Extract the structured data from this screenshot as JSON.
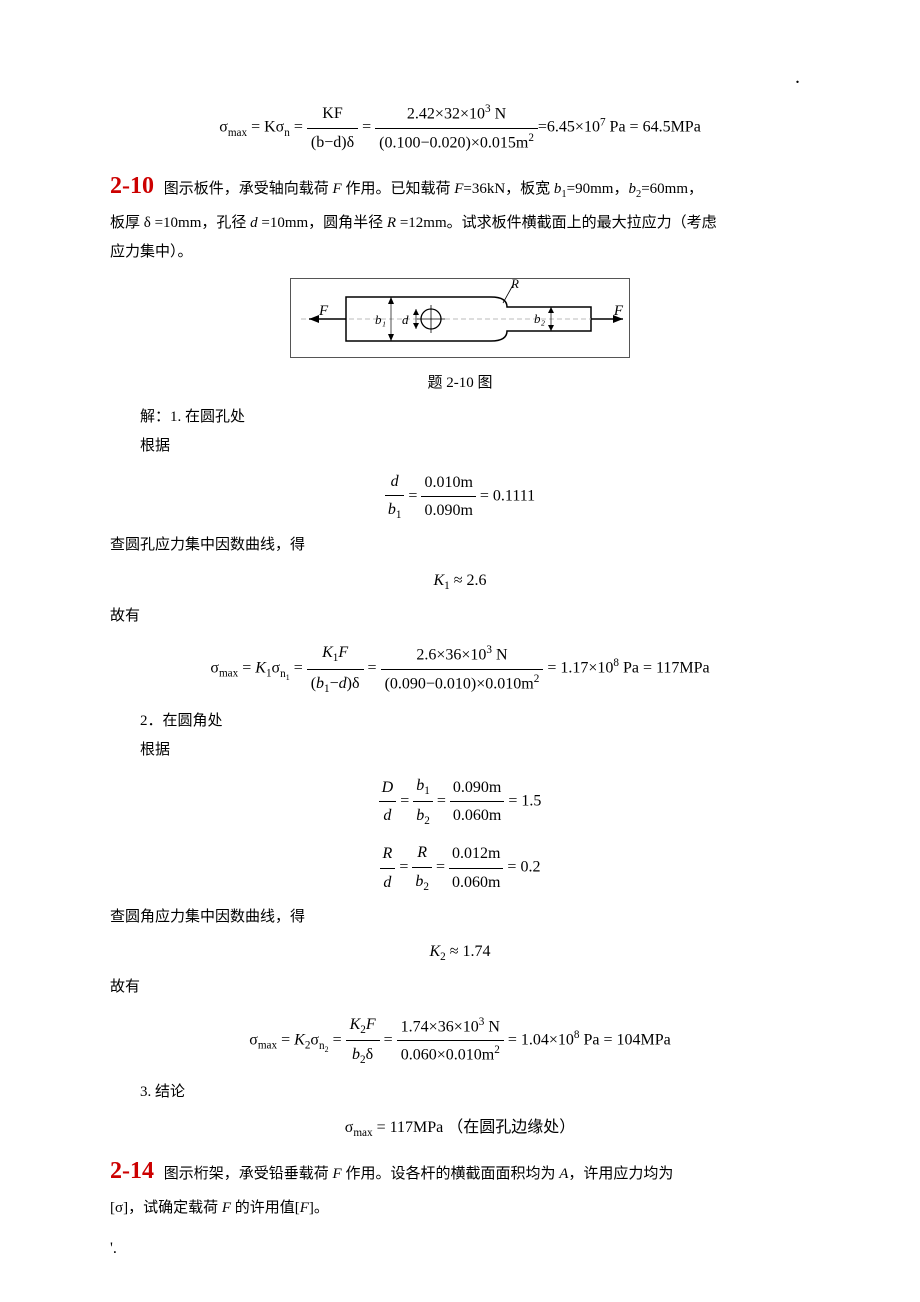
{
  "top_equation": "σ<sub>max</sub> = Kσ<sub>n</sub> = <span style='display:inline-block;vertical-align:middle'><span style='display:block;border-bottom:1px solid #000;padding:0 4px'>KF</span><span style='display:block;padding:0 4px'>(b−d)δ</span></span> = <span style='display:inline-block;vertical-align:middle'><span style='display:block;border-bottom:1px solid #000;padding:0 4px'>2.42×32×10<sup>3</sup> N</span><span style='display:block;padding:0 4px'>(0.100−0.020)×0.015m<sup>2</sup></span></span>=6.45×10<sup>7</sup> Pa = 64.5MPa",
  "p210": {
    "num": "2-10",
    "text1": "图示板件，承受轴向载荷 <span class='italic'>F</span> 作用。已知载荷 <span class='italic'>F</span>=36kN，板宽 <span class='italic'>b</span><sub>1</sub>=90mm，<span class='italic'>b</span><sub>2</sub>=60mm，",
    "text2": "板厚 δ =10mm，孔径 <span class='italic'>d</span> =10mm，圆角半径 <span class='italic'>R</span> =12mm。试求板件横截面上的最大拉应力（考虑",
    "text3": "应力集中）。",
    "figcap": "题 2-10 图",
    "sol1": "解：1. 在圆孔处",
    "sol2": "根据",
    "eq_db": "<span style='display:inline-block;vertical-align:middle'><span style='display:block;border-bottom:1px solid #000;text-align:center;padding:0 3px'><span class='italic'>d</span></span><span style='display:block;text-align:center;padding:0 3px'><span class='italic'>b</span><sub>1</sub></span></span> = <span style='display:inline-block;vertical-align:middle'><span style='display:block;border-bottom:1px solid #000;padding:0 3px'>0.010m</span><span style='display:block;padding:0 3px'>0.090m</span></span> = 0.1111",
    "curve1": "查圆孔应力集中因数曲线，得",
    "eq_k1": "<span class='italic'>K</span><sub>1</sub> ≈ 2.6",
    "hence1": "故有",
    "eq_sigma1": "σ<sub>max</sub> = <span class='italic'>K</span><sub>1</sub>σ<sub>n<sub>1</sub></sub> = <span style='display:inline-block;vertical-align:middle'><span style='display:block;border-bottom:1px solid #000;text-align:center;padding:0 4px'><span class='italic'>K</span><sub>1</sub><span class='italic'>F</span></span><span style='display:block;text-align:center;padding:0 4px'>(<span class='italic'>b</span><sub>1</sub>−<span class='italic'>d</span>)δ</span></span> = <span style='display:inline-block;vertical-align:middle'><span style='display:block;border-bottom:1px solid #000;padding:0 4px'>2.6×36×10<sup>3</sup> N</span><span style='display:block;padding:0 4px'>(0.090−0.010)×0.010m<sup>2</sup></span></span> = 1.17×10<sup>8</sup> Pa = 117MPa",
    "sol3": "2．在圆角处",
    "sol4": "根据",
    "eq_Dd": "<span style='display:inline-block;vertical-align:middle'><span style='display:block;border-bottom:1px solid #000;text-align:center;padding:0 3px'><span class='italic'>D</span></span><span style='display:block;text-align:center;padding:0 3px'><span class='italic'>d</span></span></span> = <span style='display:inline-block;vertical-align:middle'><span style='display:block;border-bottom:1px solid #000;text-align:center;padding:0 3px'><span class='italic'>b</span><sub>1</sub></span><span style='display:block;text-align:center;padding:0 3px'><span class='italic'>b</span><sub>2</sub></span></span> = <span style='display:inline-block;vertical-align:middle'><span style='display:block;border-bottom:1px solid #000;padding:0 3px'>0.090m</span><span style='display:block;padding:0 3px'>0.060m</span></span> = 1.5",
    "eq_Rd": "<span style='display:inline-block;vertical-align:middle'><span style='display:block;border-bottom:1px solid #000;text-align:center;padding:0 3px'><span class='italic'>R</span></span><span style='display:block;text-align:center;padding:0 3px'><span class='italic'>d</span></span></span> = <span style='display:inline-block;vertical-align:middle'><span style='display:block;border-bottom:1px solid #000;text-align:center;padding:0 3px'><span class='italic'>R</span></span><span style='display:block;text-align:center;padding:0 3px'><span class='italic'>b</span><sub>2</sub></span></span> = <span style='display:inline-block;vertical-align:middle'><span style='display:block;border-bottom:1px solid #000;padding:0 3px'>0.012m</span><span style='display:block;padding:0 3px'>0.060m</span></span> = 0.2",
    "curve2": "查圆角应力集中因数曲线，得",
    "eq_k2": "<span class='italic'>K</span><sub>2</sub> ≈ 1.74",
    "hence2": "故有",
    "eq_sigma2": "σ<sub>max</sub> = <span class='italic'>K</span><sub>2</sub>σ<sub>n<sub>2</sub></sub> = <span style='display:inline-block;vertical-align:middle'><span style='display:block;border-bottom:1px solid #000;text-align:center;padding:0 4px'><span class='italic'>K</span><sub>2</sub><span class='italic'>F</span></span><span style='display:block;text-align:center;padding:0 4px'><span class='italic'>b</span><sub>2</sub>δ</span></span> = <span style='display:inline-block;vertical-align:middle'><span style='display:block;border-bottom:1px solid #000;padding:0 4px'>1.74×36×10<sup>3</sup> N</span><span style='display:block;padding:0 4px'>0.060×0.010m<sup>2</sup></span></span> = 1.04×10<sup>8</sup> Pa = 104MPa",
    "sol5": "3. 结论",
    "eq_final": "σ<sub>max</sub> = 117MPa （在圆孔边缘处）"
  },
  "p214": {
    "num": "2-14",
    "text1": "图示桁架，承受铅垂载荷 <span class='italic'>F</span> 作用。设各杆的横截面面积均为 <span class='italic'>A</span>，许用应力均为",
    "text2": "[σ]，试确定载荷 <span class='italic'>F</span> 的许用值[<span class='italic'>F</span>]。"
  },
  "diagram": {
    "F_left": "F",
    "F_right": "F",
    "b1": "b₁",
    "b2": "b₂",
    "d": "d",
    "R": "R"
  }
}
